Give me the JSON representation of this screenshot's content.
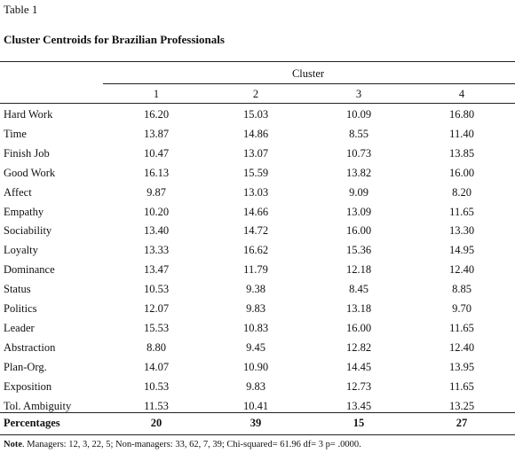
{
  "table_label": "Table 1",
  "title": "Cluster Centroids for Brazilian Professionals",
  "cluster_header": "Cluster",
  "columns": [
    "1",
    "2",
    "3",
    "4"
  ],
  "rows": [
    {
      "label": "Hard Work",
      "values": [
        "16.20",
        "15.03",
        "10.09",
        "16.80"
      ]
    },
    {
      "label": "Time",
      "values": [
        "13.87",
        "14.86",
        "8.55",
        "11.40"
      ]
    },
    {
      "label": "Finish Job",
      "values": [
        "10.47",
        "13.07",
        "10.73",
        "13.85"
      ]
    },
    {
      "label": "Good Work",
      "values": [
        "16.13",
        "15.59",
        "13.82",
        "16.00"
      ]
    },
    {
      "label": "Affect",
      "values": [
        "9.87",
        "13.03",
        "9.09",
        "8.20"
      ]
    },
    {
      "label": "Empathy",
      "values": [
        "10.20",
        "14.66",
        "13.09",
        "11.65"
      ]
    },
    {
      "label": "Sociability",
      "values": [
        "13.40",
        "14.72",
        "16.00",
        "13.30"
      ]
    },
    {
      "label": "Loyalty",
      "values": [
        "13.33",
        "16.62",
        "15.36",
        "14.95"
      ]
    },
    {
      "label": "Dominance",
      "values": [
        "13.47",
        "11.79",
        "12.18",
        "12.40"
      ]
    },
    {
      "label": "Status",
      "values": [
        "10.53",
        "9.38",
        "8.45",
        "8.85"
      ]
    },
    {
      "label": "Politics",
      "values": [
        "12.07",
        "9.83",
        "13.18",
        "9.70"
      ]
    },
    {
      "label": "Leader",
      "values": [
        "15.53",
        "10.83",
        "16.00",
        "11.65"
      ]
    },
    {
      "label": "Abstraction",
      "values": [
        "8.80",
        "9.45",
        "12.82",
        "12.40"
      ]
    },
    {
      "label": "Plan-Org.",
      "values": [
        "14.07",
        "10.90",
        "14.45",
        "13.95"
      ]
    },
    {
      "label": "Exposition",
      "values": [
        "10.53",
        "9.83",
        "12.73",
        "11.65"
      ]
    },
    {
      "label": "Tol. Ambiguity",
      "values": [
        "11.53",
        "10.41",
        "13.45",
        "13.25"
      ]
    }
  ],
  "percentages": {
    "label": "Percentages",
    "values": [
      "20",
      "39",
      "15",
      "27"
    ]
  },
  "note": {
    "label": "Note",
    "text": ". Managers: 12, 3, 22, 5; Non-managers: 33, 62, 7, 39; Chi-squared= 61.96 df= 3 p= .0000."
  }
}
